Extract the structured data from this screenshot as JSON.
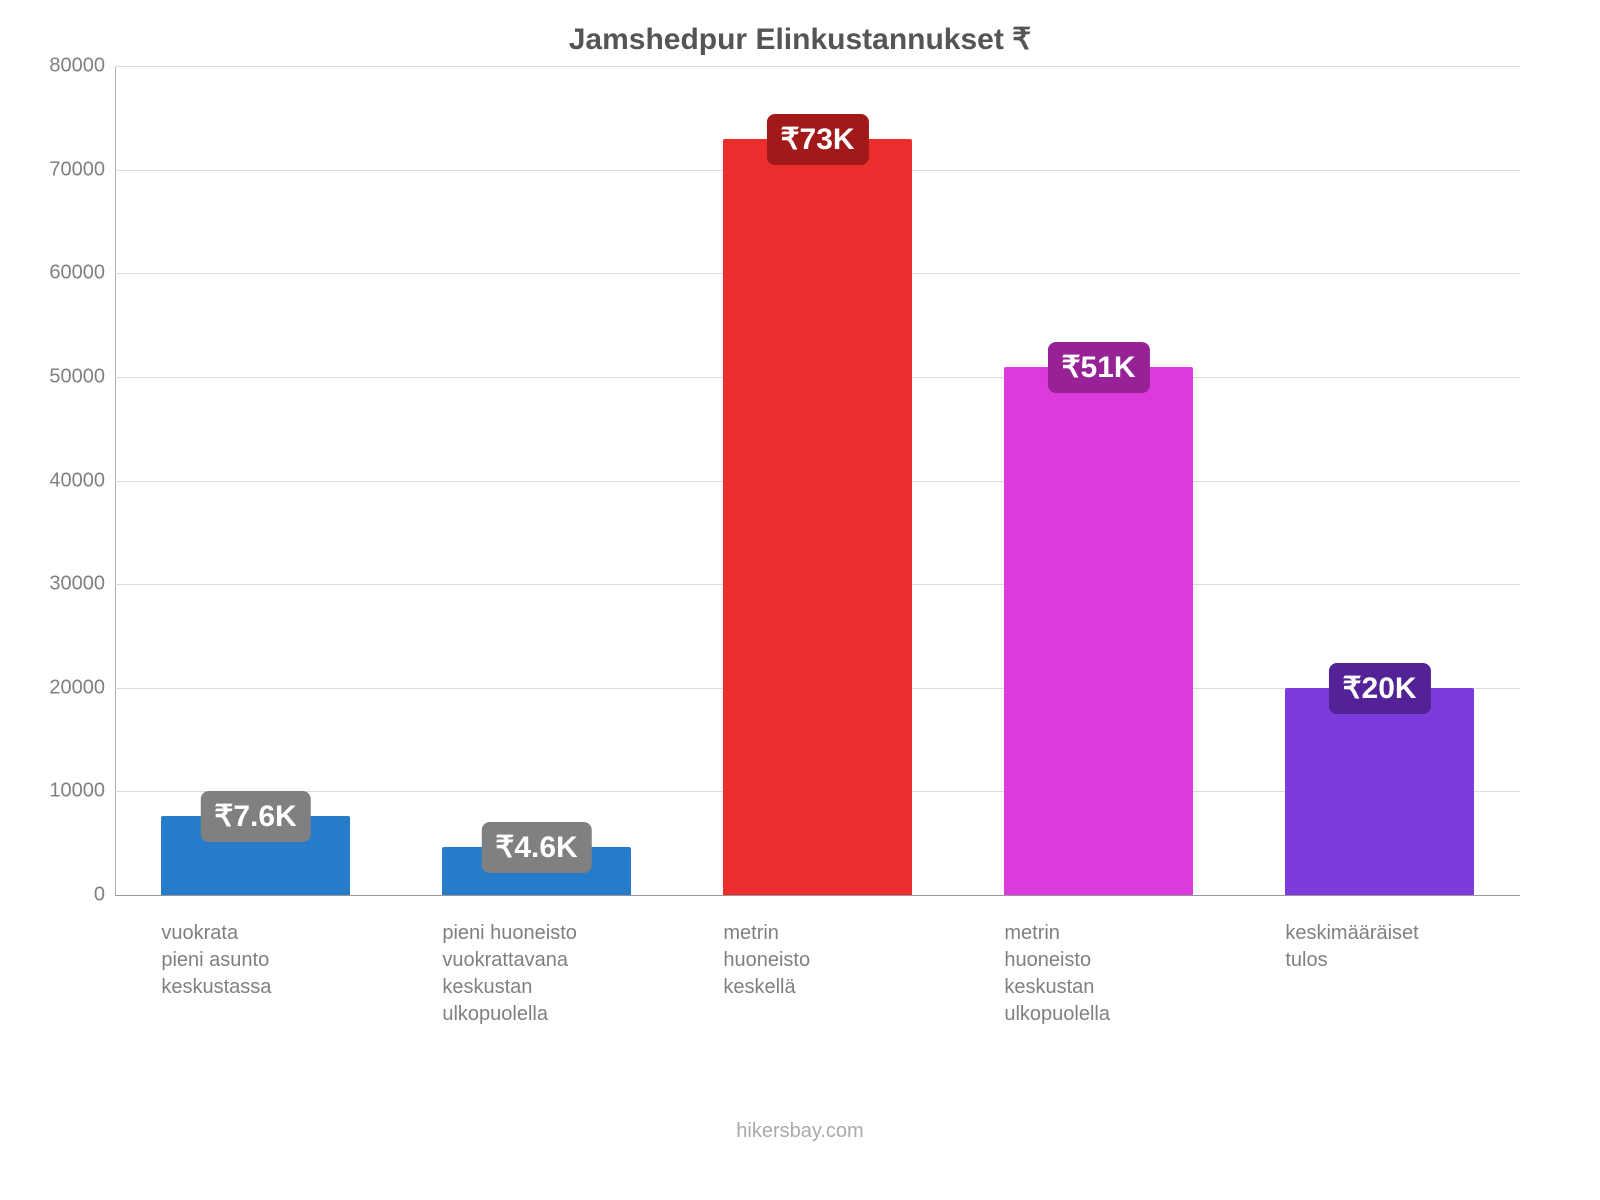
{
  "chart": {
    "type": "bar",
    "title": "Jamshedpur Elinkustannukset ₹",
    "title_color": "#555555",
    "title_fontsize": 30,
    "background_color": "#ffffff",
    "grid_color": "#dcdcdc",
    "axis_color": "#b0b0b0",
    "credit": "hikersbay.com",
    "credit_color": "#a9a9a9",
    "ylim": [
      0,
      80000
    ],
    "ytick_step": 10000,
    "yticks": [
      "0",
      "10000",
      "20000",
      "30000",
      "40000",
      "50000",
      "60000",
      "70000",
      "80000"
    ],
    "tick_fontsize": 20,
    "tick_color": "#808080",
    "xlabel_fontsize": 20,
    "xlabel_color": "#808080",
    "bar_width": 0.67,
    "items": [
      {
        "label_lines": [
          "vuokrata",
          "pieni asunto",
          "keskustassa"
        ],
        "value": 7600,
        "bar_color": "#277cca",
        "badge_text": "₹7.6K",
        "badge_color": "#808080"
      },
      {
        "label_lines": [
          "pieni huoneisto",
          "vuokrattavana",
          "keskustan",
          "ulkopuolella"
        ],
        "value": 4600,
        "bar_color": "#277cca",
        "badge_text": "₹4.6K",
        "badge_color": "#808080"
      },
      {
        "label_lines": [
          "metrin",
          "huoneisto",
          "keskellä"
        ],
        "value": 73000,
        "bar_color": "#eb2d2d",
        "badge_text": "₹73K",
        "badge_color": "#a21919"
      },
      {
        "label_lines": [
          "metrin",
          "huoneisto",
          "keskustan",
          "ulkopuolella"
        ],
        "value": 51000,
        "bar_color": "#db3bdb",
        "badge_text": "₹51K",
        "badge_color": "#962296"
      },
      {
        "label_lines": [
          "keskimääräiset",
          "tulos"
        ],
        "value": 20000,
        "bar_color": "#7d3bdb",
        "badge_text": "₹20K",
        "badge_color": "#522296"
      }
    ]
  }
}
